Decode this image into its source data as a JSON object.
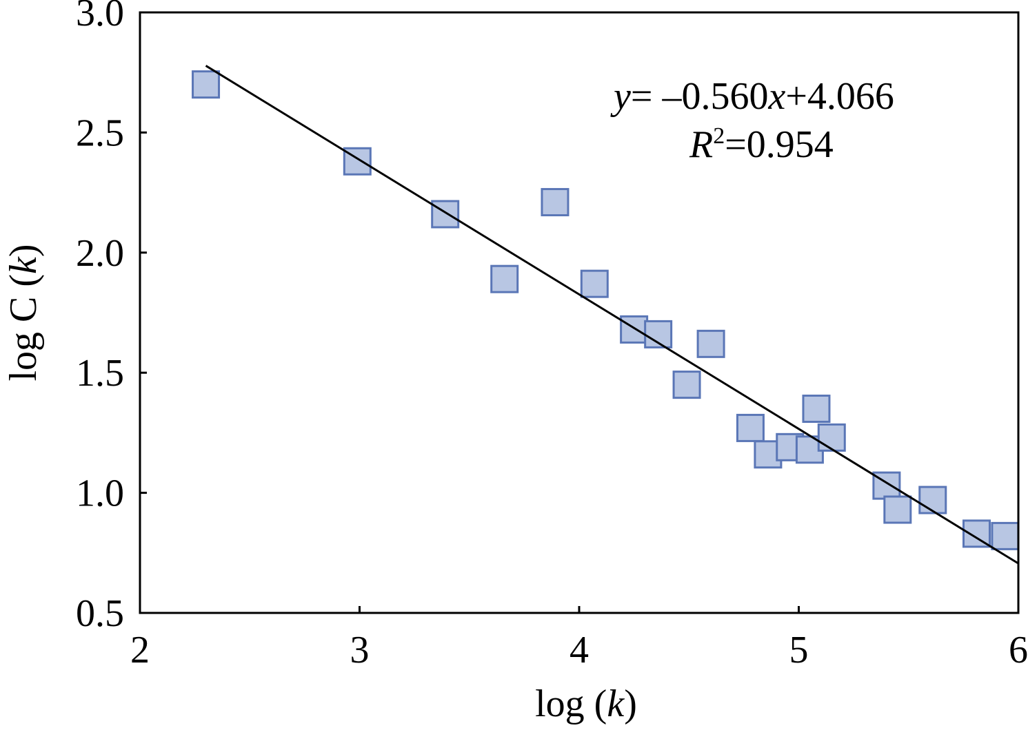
{
  "chart_data": {
    "type": "scatter",
    "xlabel": {
      "pre": "log (",
      "italic": "k",
      "post": ")"
    },
    "ylabel": {
      "pre": "log C (",
      "italic": "k",
      "post": ")"
    },
    "xlim": [
      2,
      6
    ],
    "ylim": [
      0.5,
      3.0
    ],
    "xticks": [
      2,
      3,
      4,
      5,
      6
    ],
    "xtick_labels": [
      "2",
      "3",
      "4",
      "5",
      "6"
    ],
    "yticks": [
      0.5,
      1.0,
      1.5,
      2.0,
      2.5,
      3.0
    ],
    "ytick_labels": [
      "0.5",
      "1.0",
      "1.5",
      "2.0",
      "2.5",
      "3.0"
    ],
    "grid": false,
    "marker": {
      "shape": "square",
      "fill": "#b8c6e3",
      "stroke": "#5a76b6"
    },
    "line_color": "#000000",
    "series": [
      {
        "marker": "square",
        "points": [
          {
            "x": 2.3,
            "y": 2.7
          },
          {
            "x": 2.99,
            "y": 2.38
          },
          {
            "x": 3.39,
            "y": 2.16
          },
          {
            "x": 3.66,
            "y": 1.89
          },
          {
            "x": 3.89,
            "y": 2.21
          },
          {
            "x": 4.07,
            "y": 1.87
          },
          {
            "x": 4.25,
            "y": 1.68
          },
          {
            "x": 4.36,
            "y": 1.66
          },
          {
            "x": 4.49,
            "y": 1.45
          },
          {
            "x": 4.6,
            "y": 1.62
          },
          {
            "x": 4.78,
            "y": 1.27
          },
          {
            "x": 4.86,
            "y": 1.16
          },
          {
            "x": 4.96,
            "y": 1.19
          },
          {
            "x": 5.05,
            "y": 1.18
          },
          {
            "x": 5.08,
            "y": 1.35
          },
          {
            "x": 5.15,
            "y": 1.23
          },
          {
            "x": 5.4,
            "y": 1.03
          },
          {
            "x": 5.45,
            "y": 0.93
          },
          {
            "x": 5.61,
            "y": 0.97
          },
          {
            "x": 5.81,
            "y": 0.83
          },
          {
            "x": 5.94,
            "y": 0.82
          }
        ]
      }
    ],
    "fit_line": {
      "slope": -0.56,
      "intercept": 4.066,
      "x_range": [
        2.3,
        6.0
      ]
    },
    "annotations": {
      "equation": {
        "y": "y",
        "eq": "= –0.560",
        "x": "x",
        "rest": "+4.066"
      },
      "r2": {
        "r": "R",
        "sup": "2",
        "val": "=0.954"
      }
    }
  }
}
